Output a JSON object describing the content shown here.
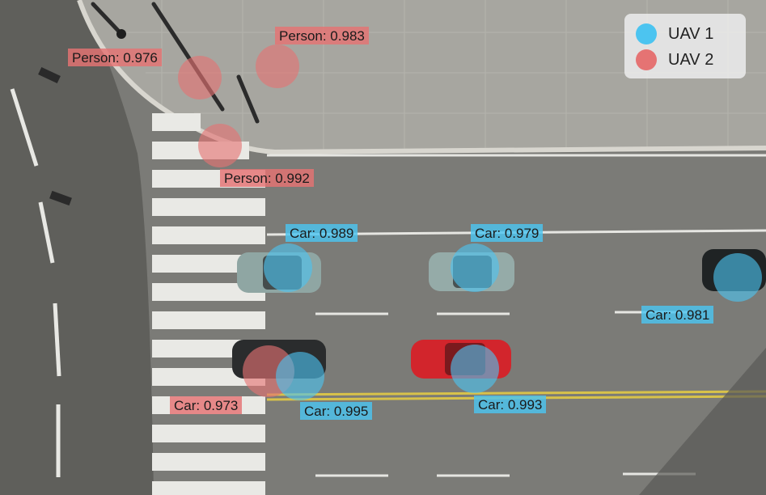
{
  "legend": {
    "items": [
      {
        "label": "UAV 1",
        "color": "#4cc4f0"
      },
      {
        "label": "UAV 2",
        "color": "#e57373"
      }
    ]
  },
  "detections": [
    {
      "source": "UAV 2",
      "text": "Person: 0.976"
    },
    {
      "source": "UAV 2",
      "text": "Person: 0.983"
    },
    {
      "source": "UAV 2",
      "text": "Person: 0.992"
    },
    {
      "source": "UAV 1",
      "text": "Car: 0.989"
    },
    {
      "source": "UAV 1",
      "text": "Car: 0.979"
    },
    {
      "source": "UAV 1",
      "text": "Car: 0.981"
    },
    {
      "source": "UAV 2",
      "text": "Car: 0.973"
    },
    {
      "source": "UAV 1",
      "text": "Car: 0.995"
    },
    {
      "source": "UAV 1",
      "text": "Car: 0.993"
    }
  ]
}
